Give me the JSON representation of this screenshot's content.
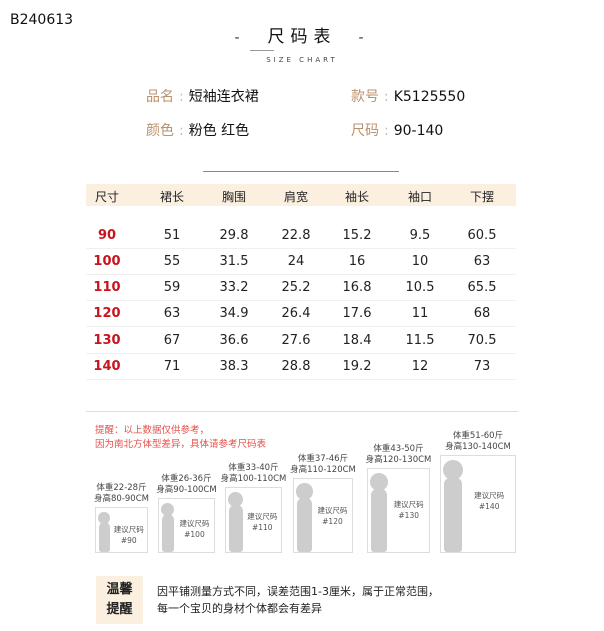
{
  "code": "B240613",
  "header": {
    "title": "尺码表",
    "dash": "-",
    "subtitle": "SIZE CHART"
  },
  "info": [
    {
      "key": "品名",
      "value": "短袖连衣裙"
    },
    {
      "key": "款号",
      "value": "K5125550"
    },
    {
      "key": "颜色",
      "value": "粉色  红色"
    },
    {
      "key": "尺码",
      "value": "90-140"
    }
  ],
  "table": {
    "headers": [
      "尺寸",
      "裙长",
      "胸围",
      "肩宽",
      "袖长",
      "袖口",
      "下摆"
    ],
    "rows": [
      [
        "90",
        "51",
        "29.8",
        "22.8",
        "15.2",
        "9.5",
        "60.5"
      ],
      [
        "100",
        "55",
        "31.5",
        "24",
        "16",
        "10",
        "63"
      ],
      [
        "110",
        "59",
        "33.2",
        "25.2",
        "16.8",
        "10.5",
        "65.5"
      ],
      [
        "120",
        "63",
        "34.9",
        "26.4",
        "17.6",
        "11",
        "68"
      ],
      [
        "130",
        "67",
        "36.6",
        "27.6",
        "18.4",
        "11.5",
        "70.5"
      ],
      [
        "140",
        "71",
        "38.3",
        "28.8",
        "19.2",
        "12",
        "73"
      ]
    ]
  },
  "warning": [
    "提醒：以上数据仅供参考，",
    "因为南北方体型差异，具体请参考尺码表"
  ],
  "figures": [
    {
      "weight": "体重22-28斤",
      "height": "身高80-90CM",
      "suggest": "建议尺码",
      "size": "#90"
    },
    {
      "weight": "体重26-36斤",
      "height": "身高90-100CM",
      "suggest": "建议尺码",
      "size": "#100"
    },
    {
      "weight": "体重33-40斤",
      "height": "身高100-110CM",
      "suggest": "建议尺码",
      "size": "#110"
    },
    {
      "weight": "体重37-46斤",
      "height": "身高110-120CM",
      "suggest": "建议尺码",
      "size": "#120"
    },
    {
      "weight": "体重43-50斤",
      "height": "身高120-130CM",
      "suggest": "建议尺码",
      "size": "#130"
    },
    {
      "weight": "体重51-60斤",
      "height": "身高130-140CM",
      "suggest": "建议尺码",
      "size": "#140"
    }
  ],
  "tip": {
    "label1": "温馨",
    "label2": "提醒",
    "line1": "因平铺测量方式不同，误差范围1-3厘米，属于正常范围，",
    "line2": "每一个宝贝的身材个体都会有差异"
  },
  "colors": {
    "accent_bg": "#fbf0e0",
    "size_red": "#c8141e",
    "label_gold": "#b8926a",
    "warning_red": "#e8504a",
    "silhouette": "#cdcdcd"
  }
}
